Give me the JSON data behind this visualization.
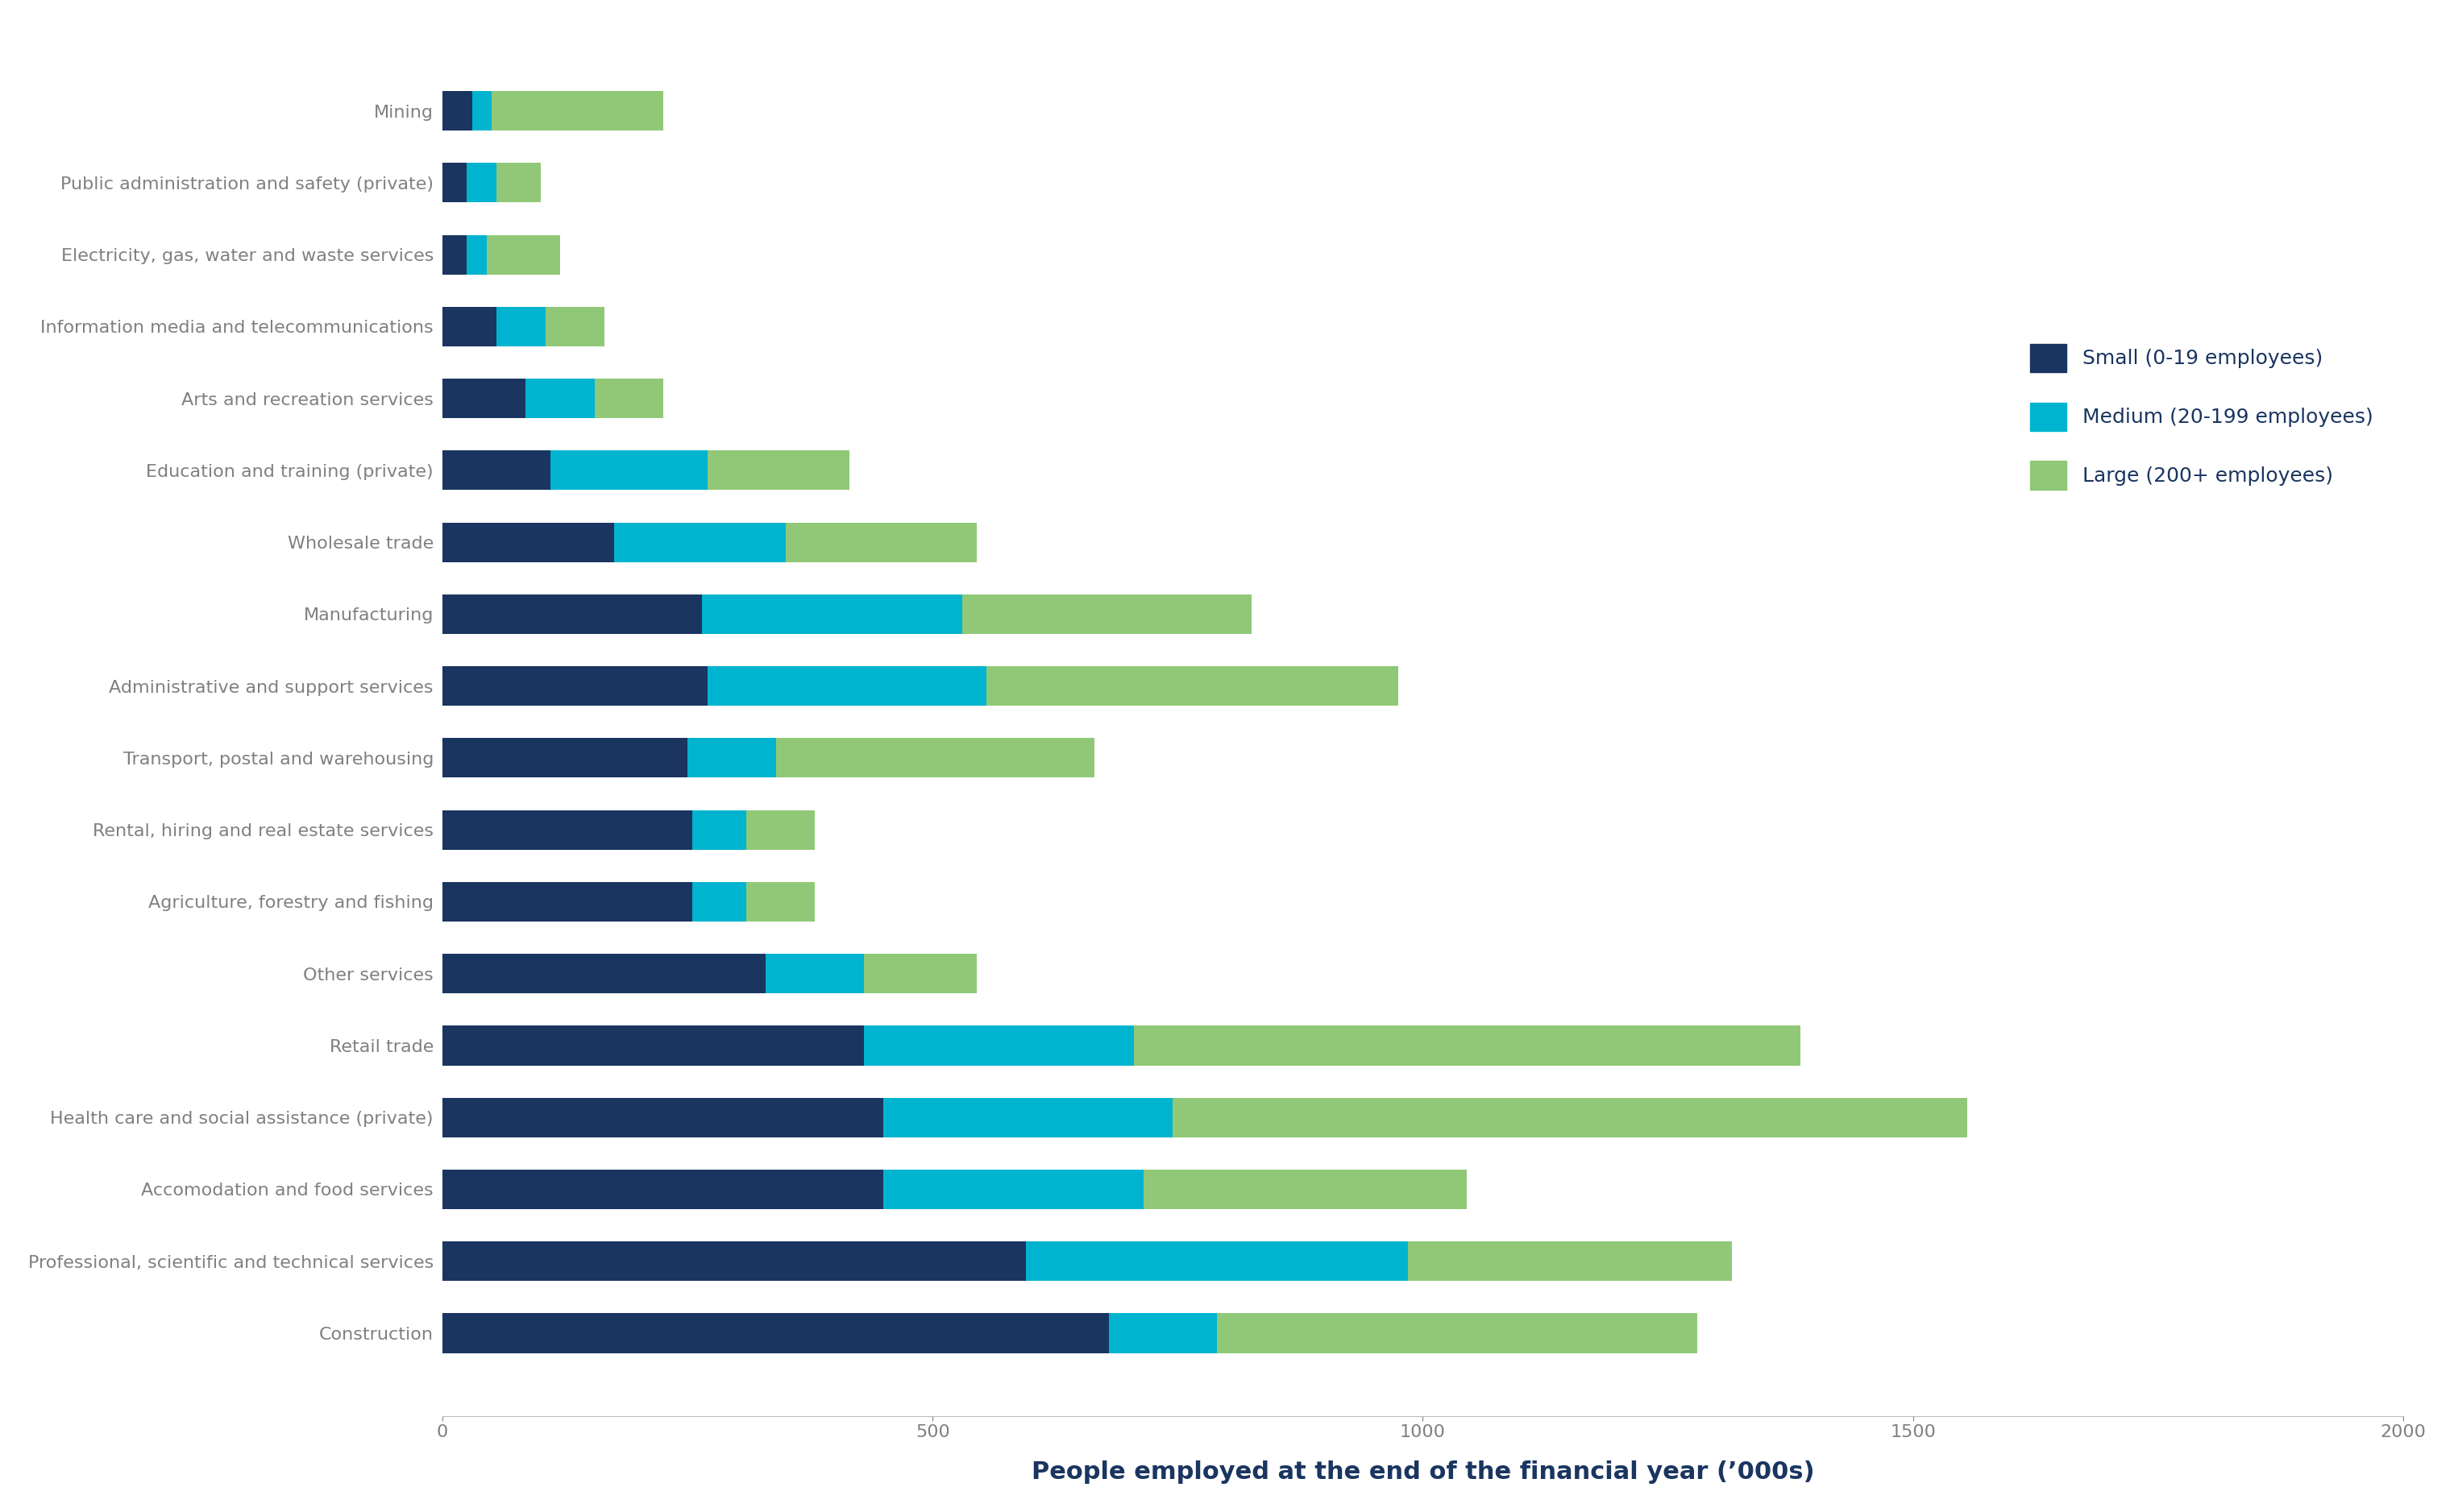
{
  "categories": [
    "Mining",
    "Public administration and safety (private)",
    "Electricity, gas, water and waste services",
    "Information media and telecommunications",
    "Arts and recreation services",
    "Education and training (private)",
    "Wholesale trade",
    "Manufacturing",
    "Administrative and support services",
    "Transport, postal and warehousing",
    "Rental, hiring and real estate services",
    "Agriculture, forestry and fishing",
    "Other services",
    "Retail trade",
    "Health care and social assistance (private)",
    "Accomodation and food services",
    "Professional, scientific and technical services",
    "Construction"
  ],
  "small": [
    30,
    25,
    25,
    55,
    85,
    110,
    175,
    265,
    270,
    250,
    255,
    255,
    330,
    430,
    450,
    450,
    595,
    680
  ],
  "medium": [
    20,
    30,
    20,
    50,
    70,
    160,
    175,
    265,
    285,
    90,
    55,
    55,
    100,
    275,
    295,
    265,
    390,
    110
  ],
  "large": [
    175,
    45,
    75,
    60,
    70,
    145,
    195,
    295,
    420,
    325,
    70,
    70,
    115,
    680,
    810,
    330,
    330,
    490
  ],
  "color_small": "#1a3560",
  "color_medium": "#00b4d0",
  "color_large": "#90c878",
  "xlabel": "People employed at the end of the financial year (’000s)",
  "xlim": [
    0,
    2000
  ],
  "xticks": [
    0,
    500,
    1000,
    1500,
    2000
  ],
  "legend_labels": [
    "Small (0-19 employees)",
    "Medium (20-199 employees)",
    "Large (200+ employees)"
  ],
  "bar_height": 0.55,
  "background_color": "#ffffff",
  "label_color": "#808080",
  "xlabel_color": "#1a3560",
  "xlabel_fontsize": 22,
  "label_fontsize": 16,
  "tick_fontsize": 16,
  "legend_fontsize": 18
}
